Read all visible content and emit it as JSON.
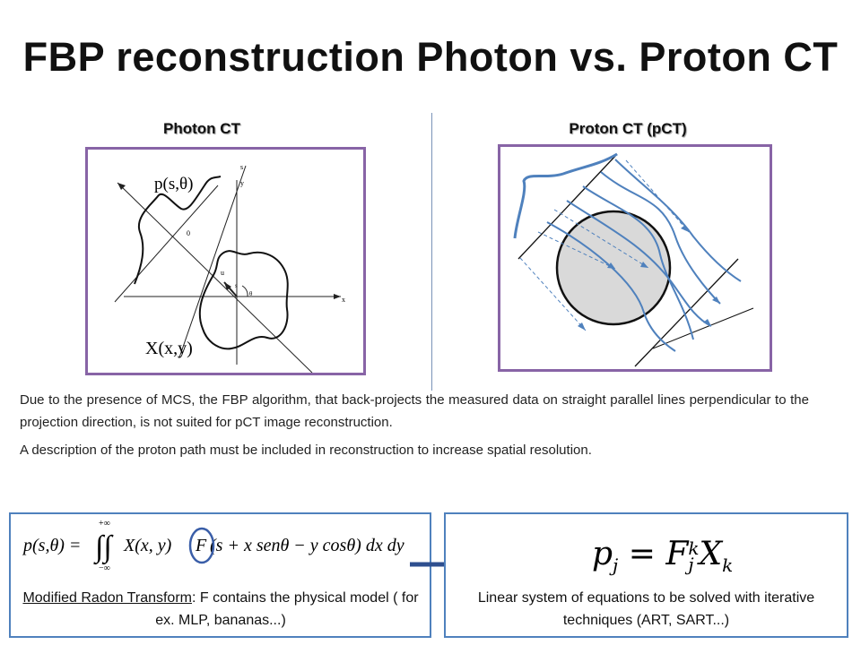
{
  "title": "FBP reconstruction Photon  vs. Proton CT",
  "photon": {
    "heading": "Photon CT",
    "projection_label": "p(s,θ)",
    "object_label": "X(x,y)",
    "axis_s": "s",
    "axis_x": "x",
    "axis_y": "y",
    "axis_u": "u",
    "label_0": "0",
    "label_s_small": "s",
    "label_theta": "θ"
  },
  "proton": {
    "heading": "Proton CT (pCT)"
  },
  "paragraph1": "Due to the presence of MCS, the FBP algorithm, that back-projects the measured data on straight parallel lines perpendicular to the projection direction, is not suited for pCT image reconstruction.",
  "paragraph2": "A description of the proton path must be included in reconstruction to increase spatial resolution.",
  "left_box": {
    "formula": {
      "lhs": "p(s,θ) =",
      "upper_limit": "+∞",
      "lower_limit": "−∞",
      "integrand_pre": "X(x, y)",
      "integrand_f": "F",
      "integrand_post": "(s + x senθ − y cosθ) dx dy"
    },
    "caption_underlined": "Modified Radon Transform",
    "caption_rest": ": F contains the physical model  ( for ex. MLP, bananas...)"
  },
  "right_box": {
    "formula": {
      "p": "p",
      "sub_j": "j",
      "eq": "=",
      "F": "F",
      "sup_k": "k",
      "X": "X",
      "sub_k": "k"
    },
    "caption": "Linear system of equations to be solved with iterative techniques (ART, SART...)"
  },
  "colors": {
    "frame_border": "#8864a6",
    "box_border": "#4f81bd",
    "proton_path": "#4f81bd",
    "circle_highlight": "#3a5ea8",
    "arrow": "#2e4f8f",
    "divider": "#7a93b8"
  }
}
